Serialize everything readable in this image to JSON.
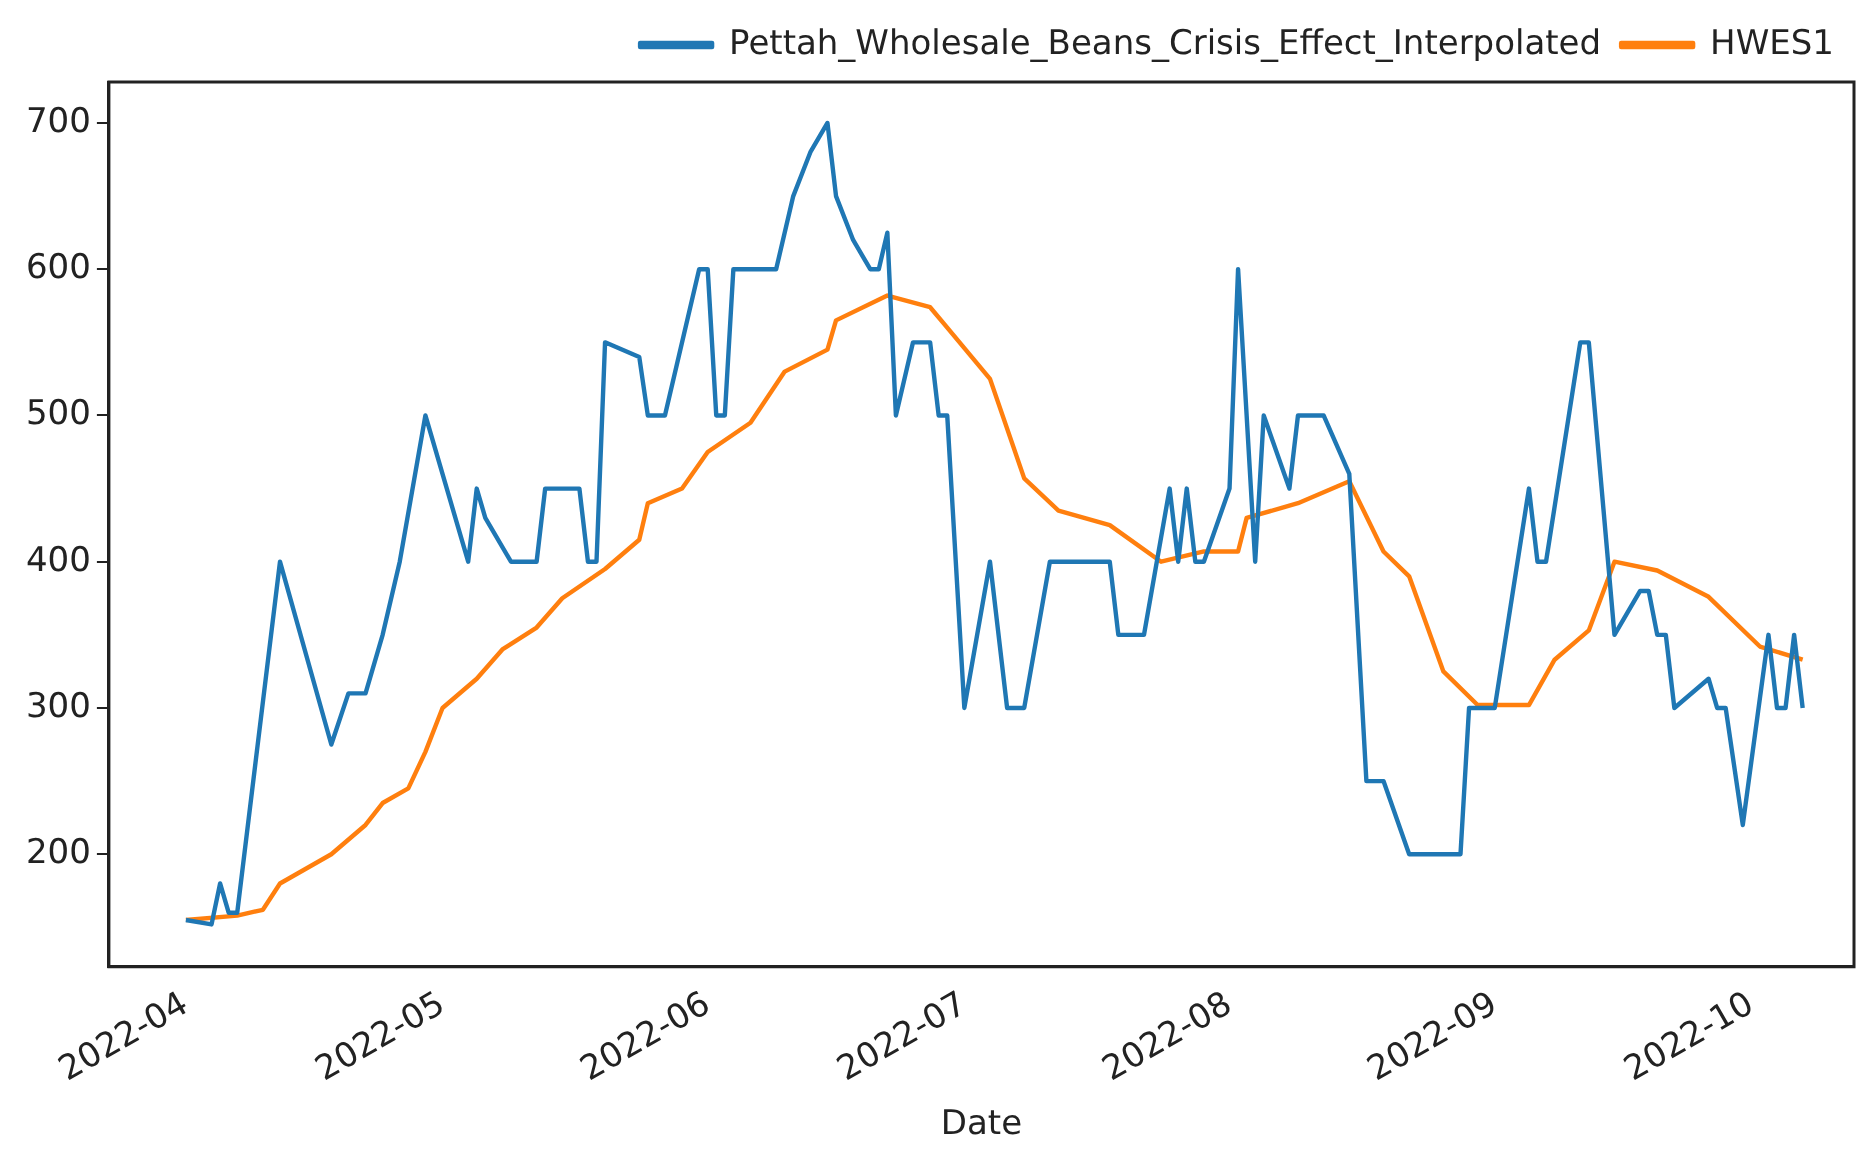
{
  "chart_data": {
    "type": "line",
    "xlabel": "Date",
    "legend": "top right",
    "grid": false,
    "marker": "none",
    "line_style": "solid",
    "xlim": [
      "2022-03-23",
      "2022-10-13"
    ],
    "xticks": [
      "2022-04",
      "2022-05",
      "2022-06",
      "2022-07",
      "2022-08",
      "2022-09",
      "2022-10"
    ],
    "ylim": [
      123,
      728
    ],
    "yticks": [
      200,
      300,
      400,
      500,
      600,
      700
    ],
    "series": [
      {
        "name": "Pettah_Wholesale_Beans_Crisis_Effect_Interpolated",
        "color": "#1f77b4",
        "x": [
          "2022-04-01",
          "2022-04-04",
          "2022-04-05",
          "2022-04-06",
          "2022-04-07",
          "2022-04-12",
          "2022-04-18",
          "2022-04-20",
          "2022-04-22",
          "2022-04-24",
          "2022-04-26",
          "2022-04-29",
          "2022-05-04",
          "2022-05-05",
          "2022-05-06",
          "2022-05-09",
          "2022-05-12",
          "2022-05-13",
          "2022-05-17",
          "2022-05-18",
          "2022-05-19",
          "2022-05-20",
          "2022-05-24",
          "2022-05-25",
          "2022-05-27",
          "2022-05-31",
          "2022-06-01",
          "2022-06-02",
          "2022-06-03",
          "2022-06-04",
          "2022-06-09",
          "2022-06-11",
          "2022-06-13",
          "2022-06-15",
          "2022-06-16",
          "2022-06-18",
          "2022-06-20",
          "2022-06-21",
          "2022-06-22",
          "2022-06-23",
          "2022-06-25",
          "2022-06-27",
          "2022-06-28",
          "2022-06-29",
          "2022-07-01",
          "2022-07-04",
          "2022-07-06",
          "2022-07-08",
          "2022-07-11",
          "2022-07-18",
          "2022-07-19",
          "2022-07-22",
          "2022-07-25",
          "2022-07-26",
          "2022-07-27",
          "2022-07-28",
          "2022-07-29",
          "2022-08-01",
          "2022-08-02",
          "2022-08-04",
          "2022-08-05",
          "2022-08-08",
          "2022-08-09",
          "2022-08-12",
          "2022-08-15",
          "2022-08-17",
          "2022-08-19",
          "2022-08-22",
          "2022-08-28",
          "2022-08-29",
          "2022-09-01",
          "2022-09-05",
          "2022-09-06",
          "2022-09-07",
          "2022-09-11",
          "2022-09-12",
          "2022-09-15",
          "2022-09-18",
          "2022-09-19",
          "2022-09-20",
          "2022-09-21",
          "2022-09-22",
          "2022-09-26",
          "2022-09-27",
          "2022-09-28",
          "2022-09-30",
          "2022-10-03",
          "2022-10-04",
          "2022-10-05",
          "2022-10-06",
          "2022-10-07"
        ],
        "values": [
          155,
          152,
          180,
          160,
          160,
          400,
          275,
          310,
          310,
          350,
          400,
          500,
          400,
          450,
          430,
          400,
          400,
          450,
          450,
          400,
          400,
          550,
          540,
          500,
          500,
          600,
          600,
          500,
          500,
          600,
          600,
          650,
          680,
          700,
          650,
          620,
          600,
          600,
          625,
          500,
          550,
          550,
          500,
          500,
          300,
          400,
          300,
          300,
          400,
          400,
          350,
          350,
          450,
          400,
          450,
          400,
          400,
          450,
          600,
          400,
          500,
          450,
          500,
          500,
          460,
          250,
          250,
          200,
          200,
          300,
          300,
          450,
          400,
          400,
          550,
          550,
          350,
          380,
          380,
          350,
          350,
          300,
          320,
          300,
          300,
          220,
          350,
          300,
          300,
          350,
          300
        ]
      },
      {
        "name": "HWES1",
        "color": "#ff7f0e",
        "x": [
          "2022-04-01",
          "2022-04-07",
          "2022-04-10",
          "2022-04-12",
          "2022-04-18",
          "2022-04-22",
          "2022-04-24",
          "2022-04-27",
          "2022-04-29",
          "2022-05-01",
          "2022-05-05",
          "2022-05-08",
          "2022-05-12",
          "2022-05-15",
          "2022-05-20",
          "2022-05-24",
          "2022-05-25",
          "2022-05-29",
          "2022-06-01",
          "2022-06-06",
          "2022-06-10",
          "2022-06-15",
          "2022-06-16",
          "2022-06-22",
          "2022-06-27",
          "2022-06-29",
          "2022-07-04",
          "2022-07-08",
          "2022-07-12",
          "2022-07-18",
          "2022-07-24",
          "2022-07-29",
          "2022-08-02",
          "2022-08-03",
          "2022-08-09",
          "2022-08-15",
          "2022-08-19",
          "2022-08-22",
          "2022-08-26",
          "2022-08-30",
          "2022-09-05",
          "2022-09-08",
          "2022-09-12",
          "2022-09-15",
          "2022-09-20",
          "2022-09-26",
          "2022-10-02",
          "2022-10-07"
        ],
        "values": [
          155,
          158,
          162,
          180,
          200,
          220,
          235,
          245,
          270,
          300,
          320,
          340,
          355,
          375,
          395,
          415,
          440,
          450,
          475,
          495,
          530,
          545,
          565,
          582,
          574,
          560,
          525,
          457,
          435,
          425,
          400,
          407,
          407,
          430,
          440,
          455,
          407,
          390,
          325,
          302,
          302,
          333,
          353,
          400,
          394,
          376,
          342,
          333
        ]
      }
    ]
  }
}
